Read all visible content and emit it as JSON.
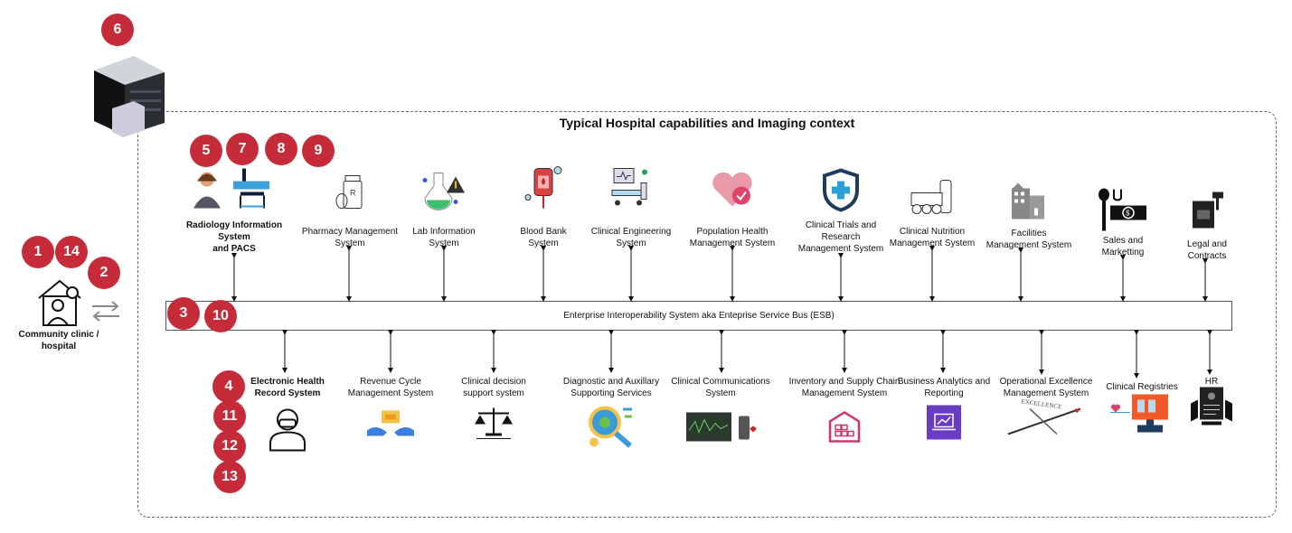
{
  "title": "Typical  Hospital capabilities and Imaging context",
  "esb_label": "Enterprise Interoperability System aka Enteprise Service Bus (ESB)",
  "community": {
    "label_line1": "Community clinic /",
    "label_line2": "hospital"
  },
  "badge_color": "#c62b3a",
  "badges": [
    "6",
    "5",
    "7",
    "8",
    "9",
    "1",
    "14",
    "2",
    "3",
    "10",
    "4",
    "11",
    "12",
    "13"
  ],
  "top_systems": [
    {
      "l1": "Radiology Information",
      "l2": "System",
      "l3": "and PACS",
      "icon": "radiologist-scanner-icon"
    },
    {
      "l1": "Pharmacy Management",
      "l2": "System",
      "icon": "pill-bottle-icon"
    },
    {
      "l1": "Lab Information",
      "l2": "System",
      "icon": "flask-warning-icon"
    },
    {
      "l1": "Blood Bank",
      "l2": "System",
      "icon": "blood-bag-icon"
    },
    {
      "l1": "Clinical Engineering",
      "l2": "System",
      "icon": "hospital-bed-monitor-icon"
    },
    {
      "l1": "Population Health",
      "l2": "Management System",
      "icon": "heart-check-icon"
    },
    {
      "l1": "Clinical  Trials and",
      "l2": "Research",
      "l3": "Management System",
      "icon": "shield-cross-icon"
    },
    {
      "l1": "Clinical Nutrition",
      "l2": "Management System",
      "icon": "eggs-milk-icon"
    },
    {
      "l1": "Facilities",
      "l2": "Management System",
      "icon": "building-icon"
    },
    {
      "l1": "Sales and",
      "l2": "Marketting",
      "icon": "sales-tag-icon"
    },
    {
      "l1": "Legal and",
      "l2": "Contracts",
      "icon": "law-book-gavel-icon"
    }
  ],
  "bottom_systems": [
    {
      "l1": "Electronic Health",
      "l2": "Record System",
      "icon": "doctor-mask-icon"
    },
    {
      "l1": "Revenue Cycle",
      "l2": "Management System",
      "icon": "money-hands-icon"
    },
    {
      "l1": "Clinical decision",
      "l2": "support system",
      "icon": "scales-icon"
    },
    {
      "l1": "Diagnostic and Auxillary",
      "l2": "Supporting Services",
      "icon": "magnifier-virus-icon"
    },
    {
      "l1": "Clinical Communications",
      "l2": "System",
      "icon": "monitor-phone-icon"
    },
    {
      "l1": "Inventory and Supply Chain",
      "l2": "Management System",
      "icon": "warehouse-icon"
    },
    {
      "l1": "Business Analytics and",
      "l2": "Reporting",
      "icon": "analytics-laptop-icon"
    },
    {
      "l1": "Operational Excellence",
      "l2": "Management System",
      "icon": "compass-excellence-icon"
    },
    {
      "l1": "Clinical Registries",
      "icon": "registry-monitor-icon"
    },
    {
      "l1": "HR",
      "icon": "resume-icon"
    }
  ]
}
